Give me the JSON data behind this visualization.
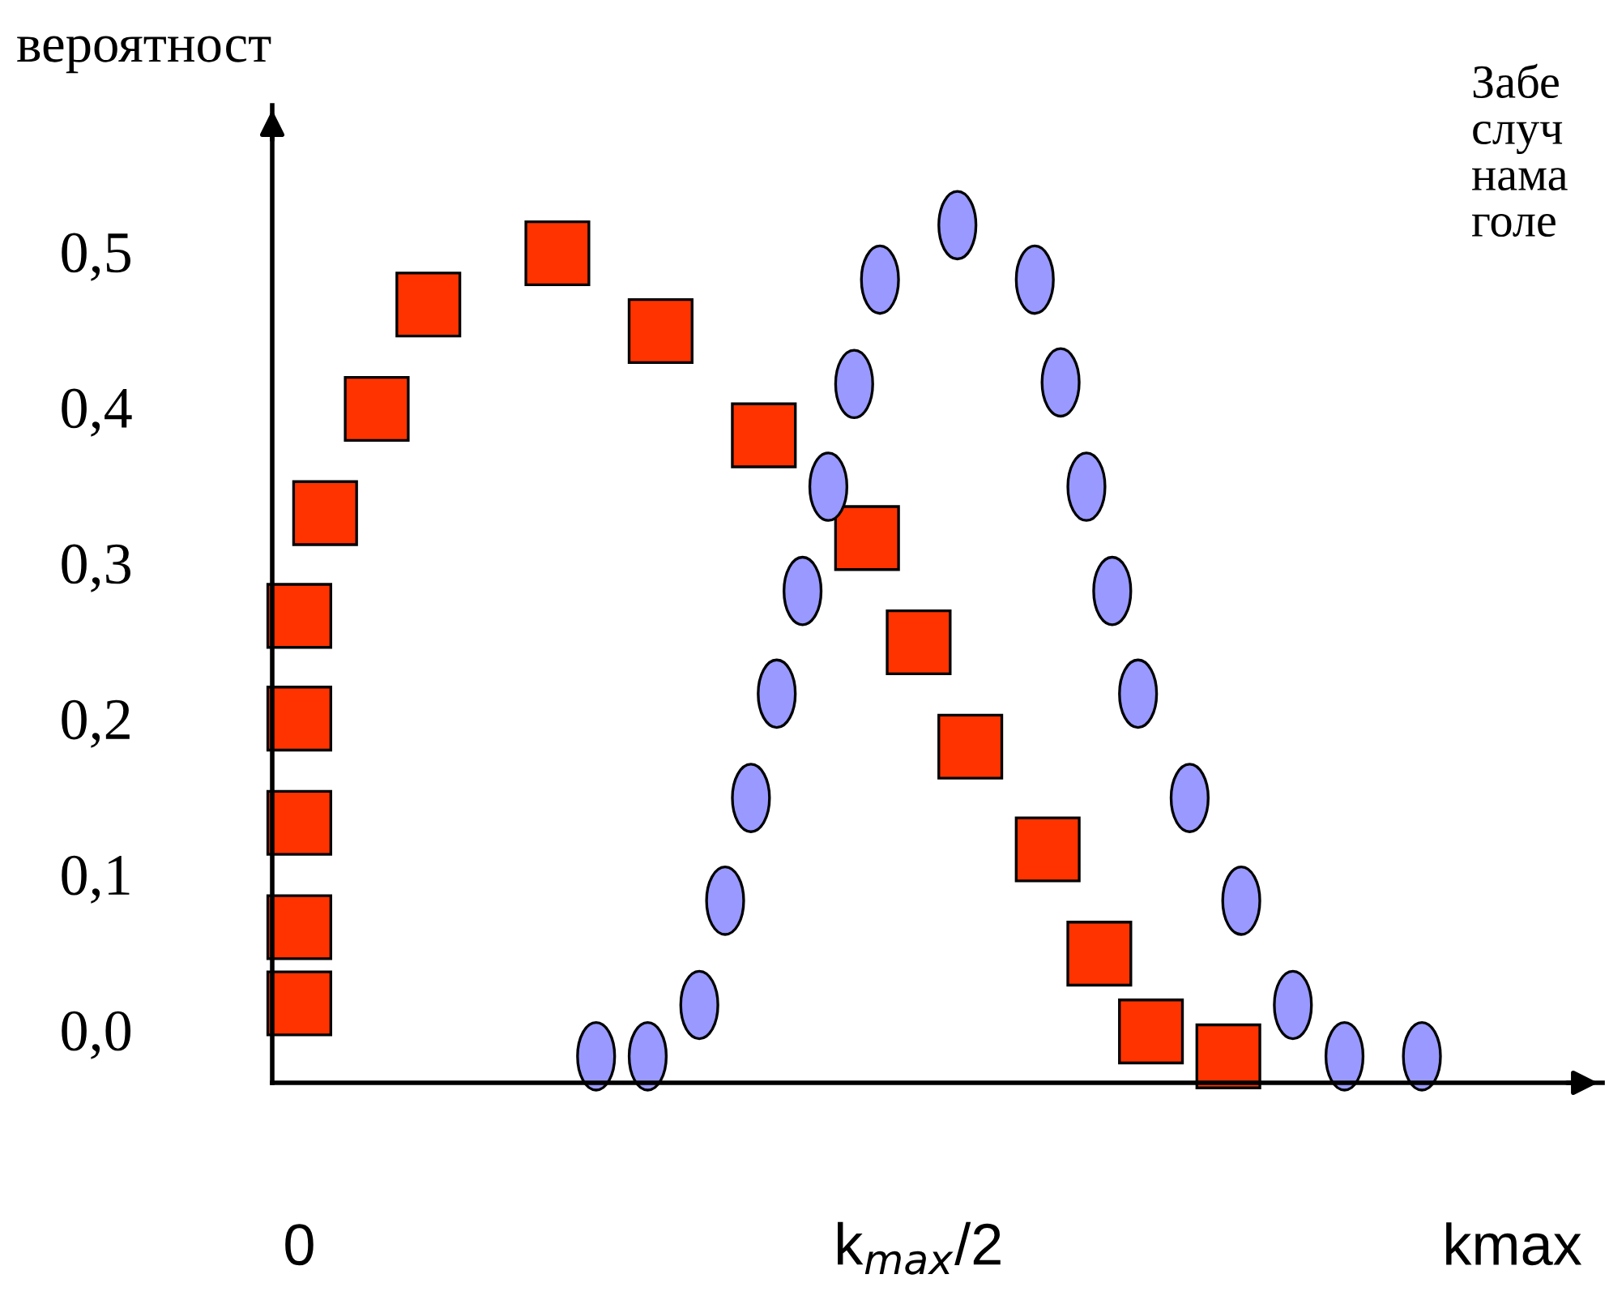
{
  "chart_data": {
    "type": "scatter",
    "ylabel": "вероятност",
    "annotations": [
      "Забе\nслуч\nнама\nголе"
    ],
    "categories": [
      "0",
      null,
      null,
      null,
      null,
      null,
      null,
      null,
      null,
      null,
      null,
      null,
      null,
      null,
      null,
      null,
      null,
      null,
      null,
      null,
      null,
      null,
      null,
      null,
      null,
      null,
      null,
      null,
      null,
      null,
      null,
      null,
      null,
      null,
      null,
      null,
      null,
      null,
      null,
      null,
      null,
      null,
      null,
      null,
      null,
      null,
      null,
      null,
      "k$_{max}$/2",
      null,
      null,
      null,
      null,
      null,
      null,
      null,
      null,
      null,
      null,
      null,
      null,
      null,
      null,
      null,
      null,
      null,
      null,
      null,
      null,
      null,
      null,
      null,
      null,
      null,
      null,
      null,
      null,
      null,
      null,
      null,
      null,
      null,
      null,
      null,
      null,
      null,
      null,
      null,
      null,
      null,
      null,
      null,
      null,
      null,
      "kmax"
    ],
    "ylim": [
      -0.034,
      0.594
    ],
    "yticks": [
      {
        "value": 0,
        "label": "0,0"
      },
      {
        "value": 0.1,
        "label": "0,1"
      },
      {
        "value": 0.2,
        "label": "0,2"
      },
      {
        "value": 0.3,
        "label": "0,3"
      },
      {
        "value": 0.4,
        "label": "0,4"
      },
      {
        "value": 0.5,
        "label": "0,5"
      }
    ],
    "grid": false,
    "series": [
      {
        "color": "#ff3300",
        "marker": "square",
        "values": [
          0.017,
          null,
          0.332,
          null,
          null,
          null,
          0.399,
          null,
          null,
          null,
          0.466,
          null,
          null,
          null,
          null,
          null,
          null,
          null,
          null,
          null,
          0.499,
          null,
          null,
          null,
          null,
          null,
          null,
          null,
          0.449,
          null,
          null,
          null,
          null,
          null,
          null,
          null,
          0.382,
          null,
          null,
          null,
          null,
          null,
          null,
          null,
          0.316,
          null,
          null,
          null,
          0.249,
          null,
          null,
          null,
          0.182,
          null,
          null,
          null,
          null,
          null,
          0.116,
          null,
          null,
          null,
          0.049,
          null,
          null,
          null,
          -0.001,
          null,
          null,
          null,
          null,
          null,
          -0.017,
          null,
          null,
          null,
          null,
          null,
          null,
          null,
          null,
          null,
          null,
          null,
          null,
          null,
          null,
          null,
          null,
          null,
          null,
          null,
          null,
          null,
          null
        ]
      },
      {
        "color": "#ff3300",
        "marker": "square",
        "values": [
          0.066,
          null,
          null,
          null,
          null,
          null,
          null,
          null,
          null,
          null,
          null,
          null,
          null,
          null,
          null,
          null,
          null,
          null,
          null,
          null,
          null,
          null,
          null,
          null,
          null,
          null,
          null,
          null,
          null,
          null,
          null,
          null,
          null,
          null,
          null,
          null,
          null,
          null,
          null,
          null,
          null,
          null,
          null,
          null,
          null,
          null,
          null,
          null,
          null,
          null,
          null,
          null,
          null,
          null,
          null,
          null,
          null,
          null,
          null,
          null,
          null,
          null,
          null,
          null,
          null,
          null,
          null,
          null,
          null,
          null,
          null,
          null,
          null,
          null,
          null,
          null,
          null,
          null,
          null,
          null,
          null,
          null,
          null,
          null,
          null,
          null,
          null,
          null,
          null,
          null,
          null,
          null,
          null,
          null,
          null
        ]
      },
      {
        "color": "#ff3300",
        "marker": "square",
        "values": [
          0.133,
          null,
          null,
          null,
          null,
          null,
          null,
          null,
          null,
          null,
          null,
          null,
          null,
          null,
          null,
          null,
          null,
          null,
          null,
          null,
          null,
          null,
          null,
          null,
          null,
          null,
          null,
          null,
          null,
          null,
          null,
          null,
          null,
          null,
          null,
          null,
          null,
          null,
          null,
          null,
          null,
          null,
          null,
          null,
          null,
          null,
          null,
          null,
          null,
          null,
          null,
          null,
          null,
          null,
          null,
          null,
          null,
          null,
          null,
          null,
          null,
          null,
          null,
          null,
          null,
          null,
          null,
          null,
          null,
          null,
          null,
          null,
          null,
          null,
          null,
          null,
          null,
          null,
          null,
          null,
          null,
          null,
          null,
          null,
          null,
          null,
          null,
          null,
          null,
          null,
          null,
          null,
          null,
          null,
          null
        ]
      },
      {
        "color": "#ff3300",
        "marker": "square",
        "values": [
          0.2,
          null,
          null,
          null,
          null,
          null,
          null,
          null,
          null,
          null,
          null,
          null,
          null,
          null,
          null,
          null,
          null,
          null,
          null,
          null,
          null,
          null,
          null,
          null,
          null,
          null,
          null,
          null,
          null,
          null,
          null,
          null,
          null,
          null,
          null,
          null,
          null,
          null,
          null,
          null,
          null,
          null,
          null,
          null,
          null,
          null,
          null,
          null,
          null,
          null,
          null,
          null,
          null,
          null,
          null,
          null,
          null,
          null,
          null,
          null,
          null,
          null,
          null,
          null,
          null,
          null,
          null,
          null,
          null,
          null,
          null,
          null,
          null,
          null,
          null,
          null,
          null,
          null,
          null,
          null,
          null,
          null,
          null,
          null,
          null,
          null,
          null,
          null,
          null,
          null,
          null,
          null,
          null,
          null,
          null
        ]
      },
      {
        "color": "#ff3300",
        "marker": "square",
        "values": [
          0.266,
          null,
          null,
          null,
          null,
          null,
          null,
          null,
          null,
          null,
          null,
          null,
          null,
          null,
          null,
          null,
          null,
          null,
          null,
          null,
          null,
          null,
          null,
          null,
          null,
          null,
          null,
          null,
          null,
          null,
          null,
          null,
          null,
          null,
          null,
          null,
          null,
          null,
          null,
          null,
          null,
          null,
          null,
          null,
          null,
          null,
          null,
          null,
          null,
          null,
          null,
          null,
          null,
          null,
          null,
          null,
          null,
          null,
          null,
          null,
          null,
          null,
          null,
          null,
          null,
          null,
          null,
          null,
          null,
          null,
          null,
          null,
          null,
          null,
          null,
          null,
          null,
          null,
          null,
          null,
          null,
          null,
          null,
          null,
          null,
          null,
          null,
          null,
          null,
          null,
          null,
          null,
          null,
          null,
          null
        ]
      },
      {
        "color": "#9999ff",
        "marker": "circle",
        "values": [
          null,
          null,
          null,
          null,
          null,
          null,
          null,
          null,
          null,
          null,
          null,
          null,
          null,
          null,
          null,
          null,
          null,
          null,
          null,
          null,
          null,
          null,
          null,
          -0.017,
          null,
          null,
          null,
          -0.017,
          null,
          null,
          null,
          0.016,
          null,
          0.083,
          null,
          0.149,
          null,
          0.216,
          null,
          0.282,
          null,
          0.349,
          null,
          0.415,
          null,
          0.482,
          null,
          null,
          null,
          null,
          null,
          0.517,
          null,
          null,
          null,
          null,
          null,
          0.482,
          null,
          0.416,
          null,
          0.349,
          null,
          0.282,
          null,
          0.216,
          null,
          null,
          null,
          0.149,
          null,
          null,
          null,
          0.083,
          null,
          null,
          null,
          0.016,
          null,
          null,
          null,
          -0.017,
          null,
          null,
          null,
          null,
          null,
          -0.017,
          null,
          null,
          null,
          null,
          null,
          null,
          null
        ]
      }
    ]
  }
}
